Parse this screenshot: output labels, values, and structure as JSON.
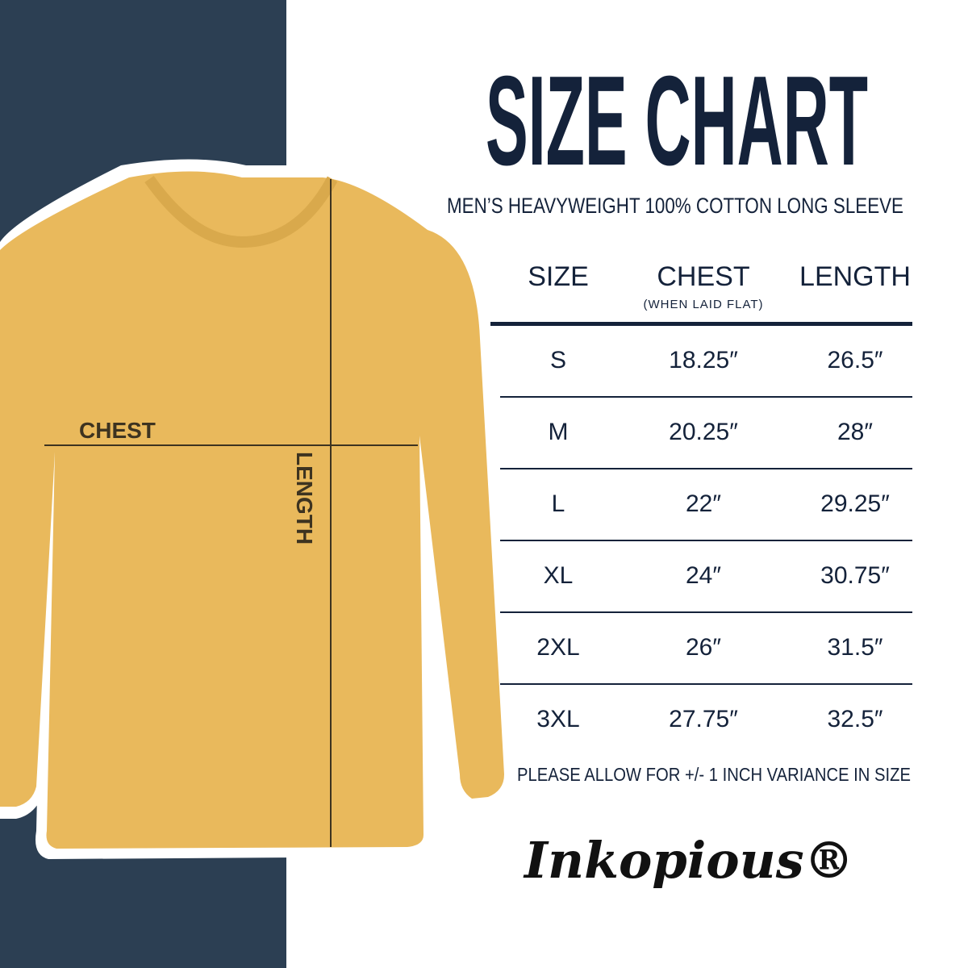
{
  "colors": {
    "navy_panel": "#2c3f53",
    "shirt": "#e9b95c",
    "text": "#14223a"
  },
  "title": "SIZE CHART",
  "subtitle": "MEN’S HEAVYWEIGHT 100% COTTON LONG SLEEVE",
  "shirt_labels": {
    "chest": "CHEST",
    "length": "LENGTH"
  },
  "table": {
    "headers": {
      "size": "SIZE",
      "chest": "CHEST",
      "chest_note": "(WHEN LAID FLAT)",
      "length": "LENGTH"
    },
    "rows": [
      {
        "size": "S",
        "chest": "18.25″",
        "length": "26.5″"
      },
      {
        "size": "M",
        "chest": "20.25″",
        "length": "28″"
      },
      {
        "size": "L",
        "chest": "22″",
        "length": "29.25″"
      },
      {
        "size": "XL",
        "chest": "24″",
        "length": "30.75″"
      },
      {
        "size": "2XL",
        "chest": "26″",
        "length": "31.5″"
      },
      {
        "size": "3XL",
        "chest": "27.75″",
        "length": "32.5″"
      }
    ]
  },
  "note": "PLEASE ALLOW FOR +/- 1 INCH VARIANCE IN SIZE",
  "logo": "Inkopious®"
}
